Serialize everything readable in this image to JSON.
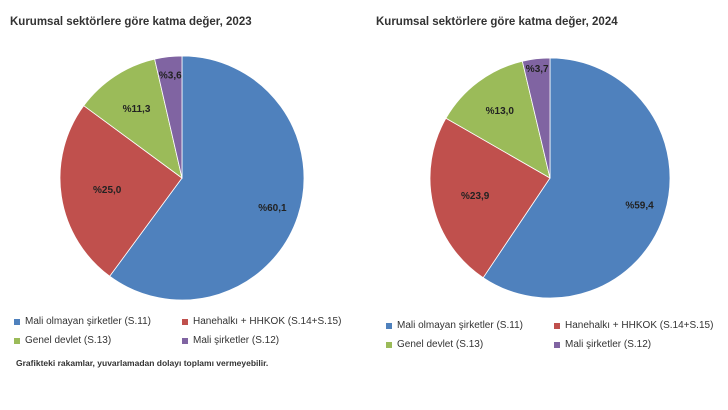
{
  "chart_data": [
    {
      "type": "pie",
      "title": "Kurumsal sektörlere göre katma değer, 2023",
      "categories": [
        "Mali olmayan şirketler (S.11)",
        "Hanehalkı + HHKOK (S.14+S.15)",
        "Genel devlet (S.13)",
        "Mali şirketler (S.12)"
      ],
      "values": [
        60.1,
        25.0,
        11.3,
        3.6
      ],
      "labels": [
        "%60,1",
        "%25,0",
        "%11,3",
        "%3,6"
      ],
      "colors": [
        "#4f81bd",
        "#c0504d",
        "#9bbb59",
        "#8064a2"
      ],
      "legend": "bottom"
    },
    {
      "type": "pie",
      "title": "Kurumsal sektörlere göre katma değer, 2024",
      "categories": [
        "Mali olmayan şirketler (S.11)",
        "Hanehalkı + HHKOK (S.14+S.15)",
        "Genel devlet (S.13)",
        "Mali şirketler (S.12)"
      ],
      "values": [
        59.4,
        23.9,
        13.0,
        3.7
      ],
      "labels": [
        "%59,4",
        "%23,9",
        "%13,0",
        "%3,7"
      ],
      "colors": [
        "#4f81bd",
        "#c0504d",
        "#9bbb59",
        "#8064a2"
      ],
      "legend": "bottom"
    }
  ],
  "legend_items": [
    {
      "label": "Mali olmayan şirketler (S.11)",
      "color": "#4f81bd"
    },
    {
      "label": "Hanehalkı + HHKOK (S.14+S.15)",
      "color": "#c0504d"
    },
    {
      "label": "Genel devlet (S.13)",
      "color": "#9bbb59"
    },
    {
      "label": "Mali şirketler (S.12)",
      "color": "#8064a2"
    }
  ],
  "footnote": "Grafikteki rakamlar, yuvarlamadan dolayı toplamı vermeyebilir."
}
